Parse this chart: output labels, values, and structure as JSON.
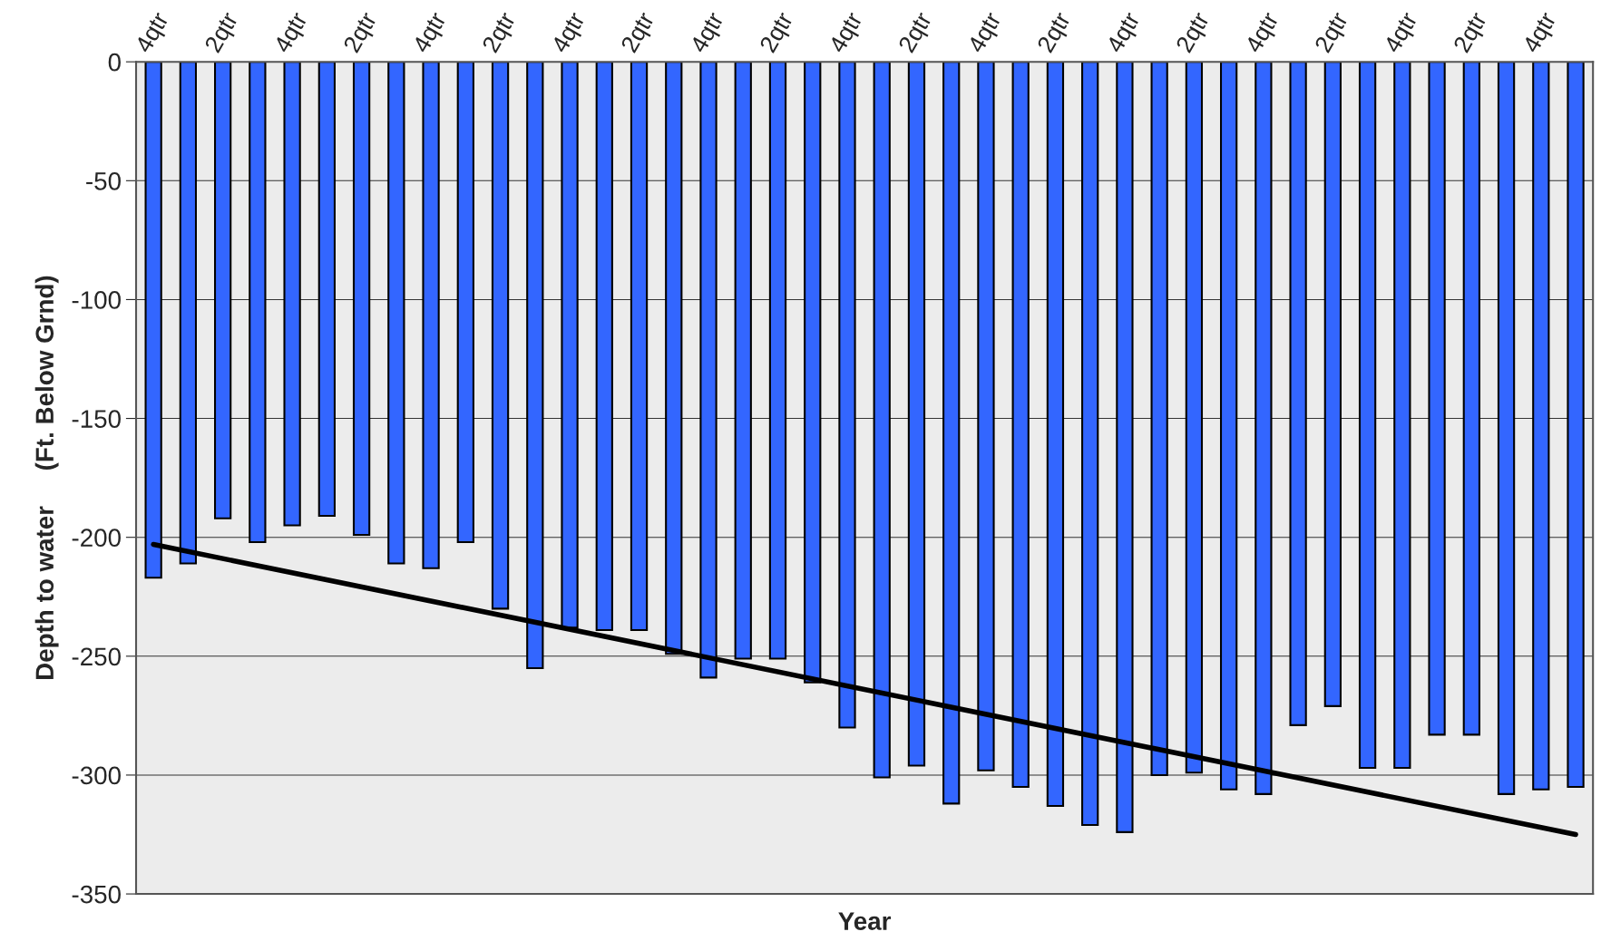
{
  "chart_data": {
    "type": "bar",
    "xlabel": "Year",
    "ylabel": "Depth to water     (Ft. Below Grnd)",
    "categories": [
      "4qtr",
      null,
      "2qtr",
      null,
      "4qtr",
      null,
      "2qtr",
      null,
      "4qtr",
      null,
      "2qtr",
      null,
      "4qtr",
      null,
      "2qtr",
      null,
      "4qtr",
      null,
      "2qtr",
      null,
      "4qtr",
      null,
      "2qtr",
      null,
      "4qtr",
      null,
      "2qtr",
      null,
      "4qtr",
      null,
      "2qtr",
      null,
      "4qtr",
      null,
      "2qtr",
      null,
      "4qtr",
      null,
      "2qtr",
      null,
      "4qtr",
      null
    ],
    "series": [
      {
        "color": "#3366ff",
        "values": [
          -217,
          -211,
          -192,
          -202,
          -195,
          -191,
          -199,
          -211,
          -213,
          -202,
          -230,
          -255,
          -238,
          -239,
          -239,
          -249,
          -259,
          -251,
          -251,
          -261,
          -280,
          -301,
          -296,
          -312,
          -298,
          -305,
          -313,
          -321,
          -324,
          -300,
          -299,
          -306,
          -308,
          -279,
          -271,
          -297,
          -297,
          -283,
          -283,
          -308,
          -306,
          -305
        ]
      },
      {
        "type": "line",
        "color": "#000000",
        "values": [
          -203,
          null,
          null,
          null,
          null,
          null,
          null,
          null,
          null,
          null,
          null,
          null,
          null,
          null,
          null,
          null,
          null,
          null,
          null,
          null,
          null,
          null,
          null,
          null,
          null,
          null,
          null,
          null,
          null,
          null,
          null,
          null,
          null,
          null,
          null,
          null,
          null,
          null,
          null,
          null,
          null,
          -325
        ]
      }
    ],
    "ylim": [
      -350,
      0
    ],
    "yticks": [
      0,
      -50,
      -100,
      -150,
      -200,
      -250,
      -300,
      -350
    ],
    "grid": "y"
  }
}
